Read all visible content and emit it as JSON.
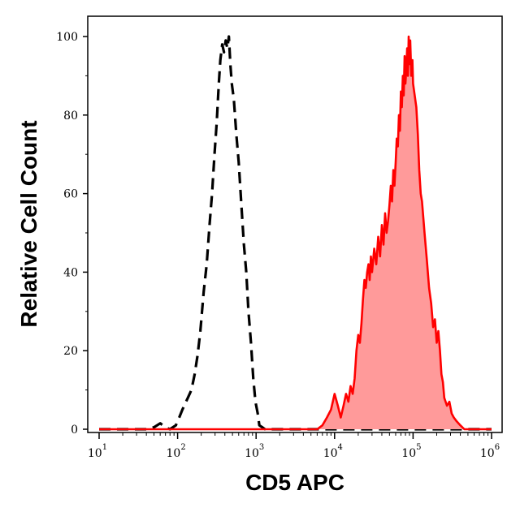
{
  "chart_data": {
    "type": "area",
    "xlabel": "CD5 APC",
    "ylabel": "Relative Cell Count",
    "x_scale": "log",
    "xlim": [
      10,
      1000000
    ],
    "ylim": [
      0,
      100
    ],
    "x_ticks": [
      {
        "value": 10,
        "base": "10",
        "exp": "1"
      },
      {
        "value": 100,
        "base": "10",
        "exp": "2"
      },
      {
        "value": 1000,
        "base": "10",
        "exp": "3"
      },
      {
        "value": 10000,
        "base": "10",
        "exp": "4"
      },
      {
        "value": 100000,
        "base": "10",
        "exp": "5"
      },
      {
        "value": 1000000,
        "base": "10",
        "exp": "6"
      }
    ],
    "y_ticks": [
      {
        "value": 0,
        "label": "0"
      },
      {
        "value": 20,
        "label": "20"
      },
      {
        "value": 40,
        "label": "40"
      },
      {
        "value": 60,
        "label": "60"
      },
      {
        "value": 80,
        "label": "80"
      },
      {
        "value": 100,
        "label": "100"
      }
    ],
    "grid": false,
    "legend": "none",
    "series": [
      {
        "style": "dashed",
        "color": "#000000",
        "fill": "none",
        "points": [
          [
            10,
            0
          ],
          [
            40,
            0
          ],
          [
            50,
            0.5
          ],
          [
            60,
            1.5
          ],
          [
            70,
            0.5
          ],
          [
            80,
            0
          ],
          [
            95,
            1
          ],
          [
            105,
            3
          ],
          [
            115,
            5
          ],
          [
            135,
            8
          ],
          [
            150,
            10
          ],
          [
            165,
            14
          ],
          [
            180,
            19
          ],
          [
            195,
            25
          ],
          [
            215,
            35
          ],
          [
            235,
            42
          ],
          [
            255,
            52
          ],
          [
            275,
            60
          ],
          [
            295,
            70
          ],
          [
            315,
            78
          ],
          [
            335,
            88
          ],
          [
            350,
            94
          ],
          [
            370,
            98
          ],
          [
            390,
            96
          ],
          [
            410,
            99
          ],
          [
            430,
            97
          ],
          [
            450,
            100
          ],
          [
            470,
            93
          ],
          [
            490,
            88
          ],
          [
            520,
            84
          ],
          [
            560,
            75
          ],
          [
            600,
            68
          ],
          [
            650,
            57
          ],
          [
            700,
            47
          ],
          [
            750,
            40
          ],
          [
            800,
            30
          ],
          [
            860,
            22
          ],
          [
            920,
            13
          ],
          [
            980,
            7
          ],
          [
            1050,
            4
          ],
          [
            1100,
            1
          ],
          [
            1200,
            0.5
          ],
          [
            1300,
            0
          ],
          [
            1000000,
            0
          ]
        ]
      },
      {
        "style": "solid",
        "color": "#ff0000",
        "fill": "#ff9a9a",
        "points": [
          [
            10,
            0
          ],
          [
            6000,
            0
          ],
          [
            7000,
            1
          ],
          [
            8000,
            3
          ],
          [
            9000,
            5
          ],
          [
            10000,
            9
          ],
          [
            11000,
            6
          ],
          [
            12000,
            3
          ],
          [
            13000,
            6
          ],
          [
            14000,
            9
          ],
          [
            15000,
            7
          ],
          [
            16000,
            11
          ],
          [
            17000,
            9
          ],
          [
            18000,
            13
          ],
          [
            19000,
            20
          ],
          [
            20000,
            24
          ],
          [
            21000,
            22
          ],
          [
            22000,
            27
          ],
          [
            23000,
            33
          ],
          [
            24000,
            38
          ],
          [
            25000,
            36
          ],
          [
            26000,
            40
          ],
          [
            27000,
            42
          ],
          [
            28000,
            38
          ],
          [
            29000,
            44
          ],
          [
            30000,
            40
          ],
          [
            32000,
            46
          ],
          [
            34000,
            42
          ],
          [
            36000,
            49
          ],
          [
            38000,
            44
          ],
          [
            40000,
            52
          ],
          [
            42000,
            47
          ],
          [
            44000,
            55
          ],
          [
            46000,
            50
          ],
          [
            48000,
            53
          ],
          [
            50000,
            57
          ],
          [
            52000,
            62
          ],
          [
            54000,
            58
          ],
          [
            56000,
            66
          ],
          [
            58000,
            62
          ],
          [
            60000,
            68
          ],
          [
            62000,
            74
          ],
          [
            64000,
            72
          ],
          [
            66000,
            80
          ],
          [
            68000,
            76
          ],
          [
            70000,
            86
          ],
          [
            72000,
            82
          ],
          [
            74000,
            90
          ],
          [
            76000,
            85
          ],
          [
            78000,
            95
          ],
          [
            80000,
            88
          ],
          [
            82000,
            92
          ],
          [
            84000,
            97
          ],
          [
            86000,
            90
          ],
          [
            88000,
            100
          ],
          [
            90000,
            93
          ],
          [
            92000,
            99
          ],
          [
            95000,
            90
          ],
          [
            98000,
            94
          ],
          [
            100000,
            88
          ],
          [
            105000,
            85
          ],
          [
            110000,
            82
          ],
          [
            115000,
            75
          ],
          [
            120000,
            66
          ],
          [
            125000,
            60
          ],
          [
            130000,
            58
          ],
          [
            140000,
            50
          ],
          [
            150000,
            43
          ],
          [
            160000,
            36
          ],
          [
            170000,
            32
          ],
          [
            180000,
            26
          ],
          [
            190000,
            28
          ],
          [
            200000,
            22
          ],
          [
            210000,
            25
          ],
          [
            220000,
            20
          ],
          [
            230000,
            14
          ],
          [
            240000,
            12
          ],
          [
            250000,
            8
          ],
          [
            270000,
            6
          ],
          [
            290000,
            7
          ],
          [
            310000,
            4
          ],
          [
            330000,
            3
          ],
          [
            360000,
            2
          ],
          [
            400000,
            1
          ],
          [
            450000,
            0
          ],
          [
            1000000,
            0
          ]
        ]
      }
    ]
  }
}
